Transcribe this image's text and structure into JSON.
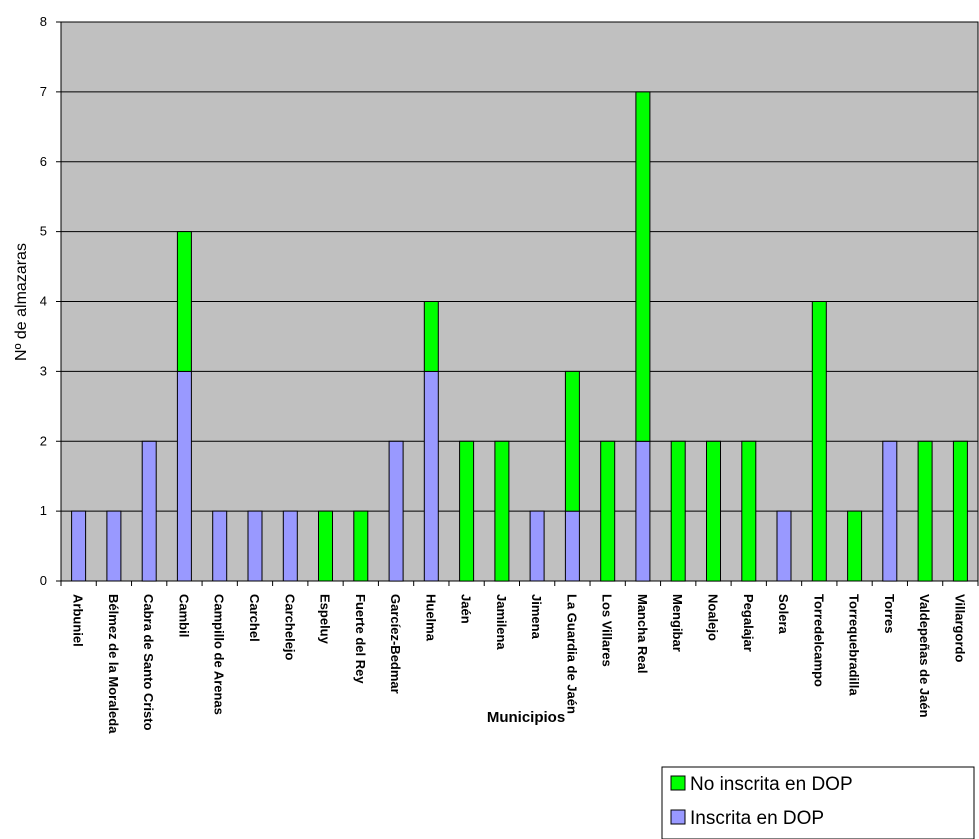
{
  "chart_data": {
    "type": "bar",
    "stacked": true,
    "xlabel": "Municipios",
    "ylabel": "Nº de almazaras",
    "ylim": [
      0,
      8
    ],
    "yticks": [
      "0",
      "1",
      "2",
      "3",
      "4",
      "5",
      "6",
      "7",
      "8"
    ],
    "grid": "horizontal",
    "legend_position": "bottom-right",
    "categories": [
      "Arbuniel",
      "Bélmez de la Moraleda",
      "Cabra de Santo Cristo",
      "Cambil",
      "Campillo de Arenas",
      "Carchel",
      "Carchelejo",
      "Espeluy",
      "Fuerte del Rey",
      "Garcíez-Bedmar",
      "Huelma",
      "Jaén",
      "Jamilena",
      "Jimena",
      "La Guardia de Jaén",
      "Los Villares",
      "Mancha Real",
      "Mengibar",
      "Noalejo",
      "Pegalajar",
      "Solera",
      "Torredelcampo",
      "Torrequebradilla",
      "Torres",
      "Valdepeñas de Jaén",
      "Villargordo"
    ],
    "series": [
      {
        "name": "Inscrita en DOP",
        "color": "#9999ff",
        "values": [
          1,
          1,
          2,
          3,
          1,
          1,
          1,
          0,
          0,
          2,
          3,
          0,
          0,
          1,
          1,
          0,
          2,
          0,
          0,
          0,
          1,
          0,
          0,
          2,
          0,
          0
        ]
      },
      {
        "name": "No inscrita en DOP",
        "color": "#00ff00",
        "values": [
          0,
          0,
          0,
          2,
          0,
          0,
          0,
          1,
          1,
          0,
          1,
          2,
          2,
          0,
          2,
          2,
          5,
          2,
          2,
          2,
          0,
          4,
          1,
          0,
          2,
          2
        ]
      }
    ],
    "plot_background": "#c0c0c0",
    "legend": [
      "No inscrita en DOP",
      "Inscrita en DOP"
    ]
  }
}
